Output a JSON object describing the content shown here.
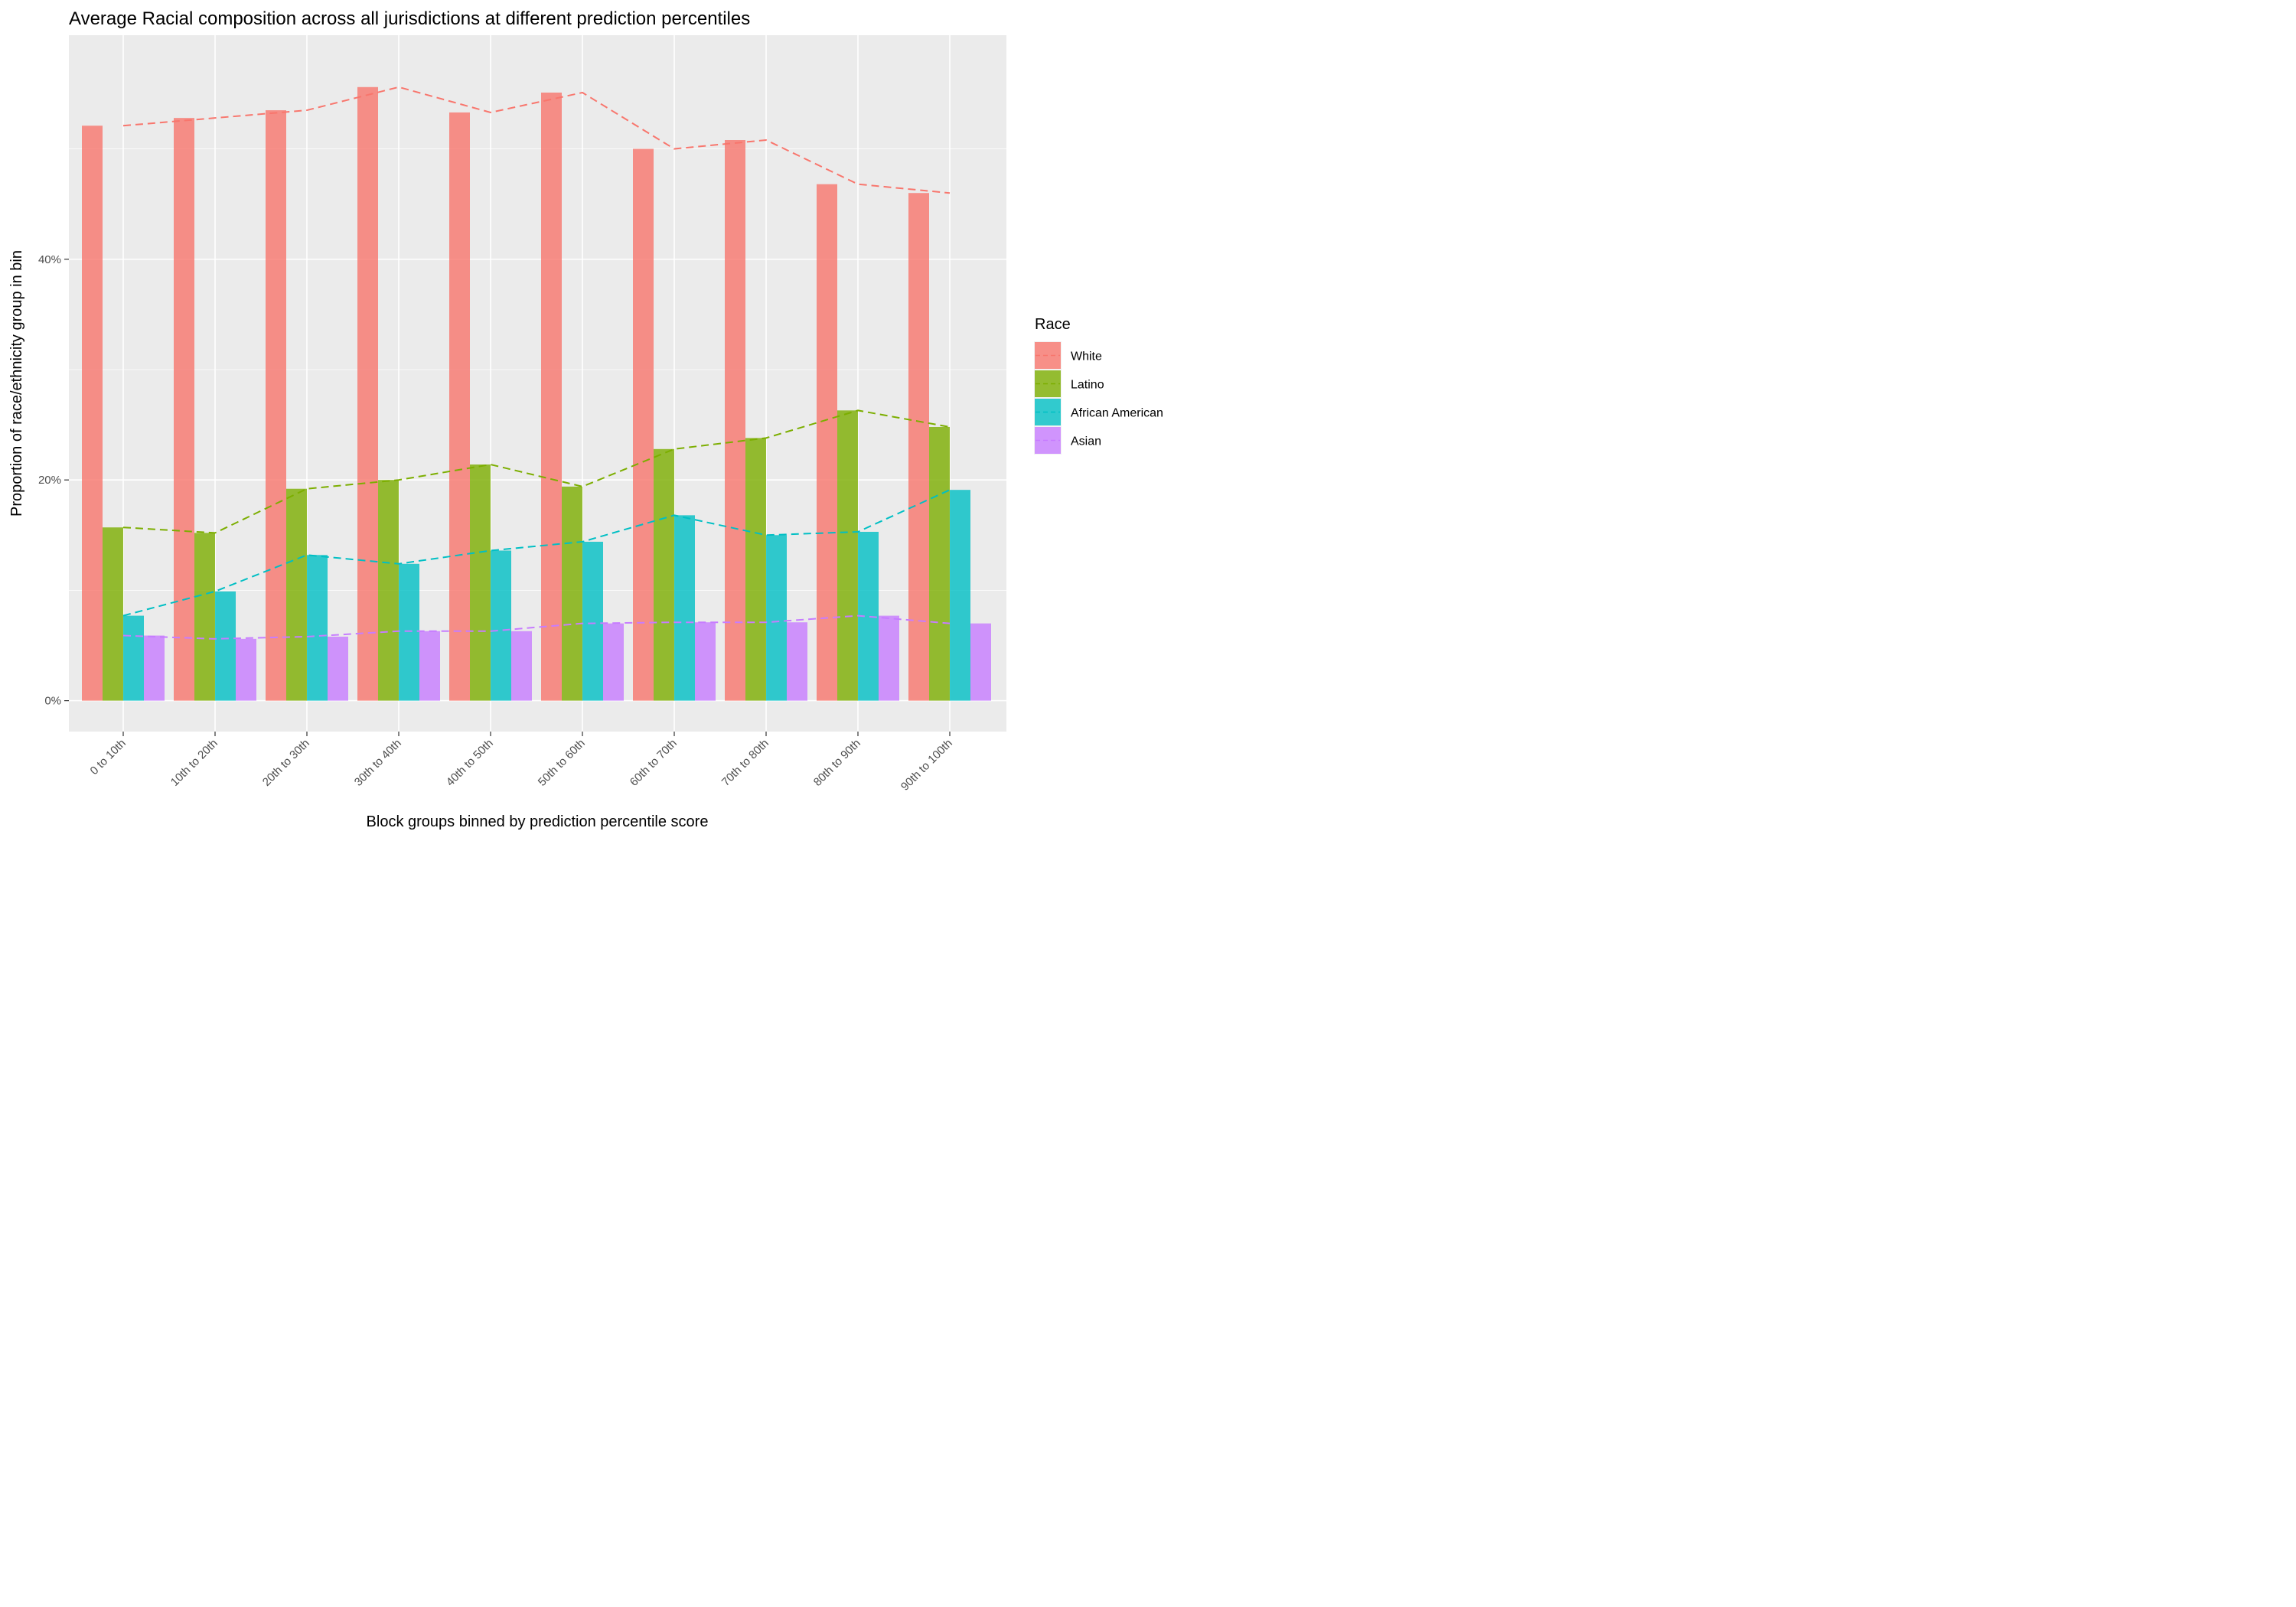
{
  "chart_data": {
    "type": "bar",
    "title": "Average Racial composition across all jurisdictions at different prediction percentiles",
    "xlabel": "Block groups binned by prediction percentile score",
    "ylabel": "Proportion of race/ethnicity group in bin",
    "categories": [
      "0 to 10th",
      "10th to 20th",
      "20th to 30th",
      "30th to 40th",
      "40th to 50th",
      "50th to 60th",
      "60th to 70th",
      "70th to 80th",
      "80th to 90th",
      "90th to 100th"
    ],
    "yticks": [
      0,
      20,
      40
    ],
    "ytick_labels": [
      "0%",
      "20%",
      "40%"
    ],
    "ylim": [
      -2.8,
      60.3
    ],
    "grid": true,
    "legend_title": "Race",
    "legend_position": "right",
    "overlay": "dashed line through each series",
    "series": [
      {
        "name": "White",
        "color": "#F8766D",
        "values": [
          52.1,
          52.8,
          53.5,
          55.6,
          53.3,
          55.1,
          50.0,
          50.8,
          46.8,
          46.0
        ]
      },
      {
        "name": "Latino",
        "color": "#7CAE00",
        "values": [
          15.7,
          15.2,
          19.2,
          20.0,
          21.4,
          19.4,
          22.8,
          23.8,
          26.3,
          24.8
        ]
      },
      {
        "name": "African American",
        "color": "#00BFC4",
        "values": [
          7.7,
          9.9,
          13.2,
          12.4,
          13.6,
          14.4,
          16.8,
          15.0,
          15.3,
          19.1
        ]
      },
      {
        "name": "Asian",
        "color": "#C77CFF",
        "values": [
          5.9,
          5.6,
          5.8,
          6.3,
          6.3,
          7.0,
          7.1,
          7.1,
          7.7,
          7.0
        ]
      }
    ]
  }
}
